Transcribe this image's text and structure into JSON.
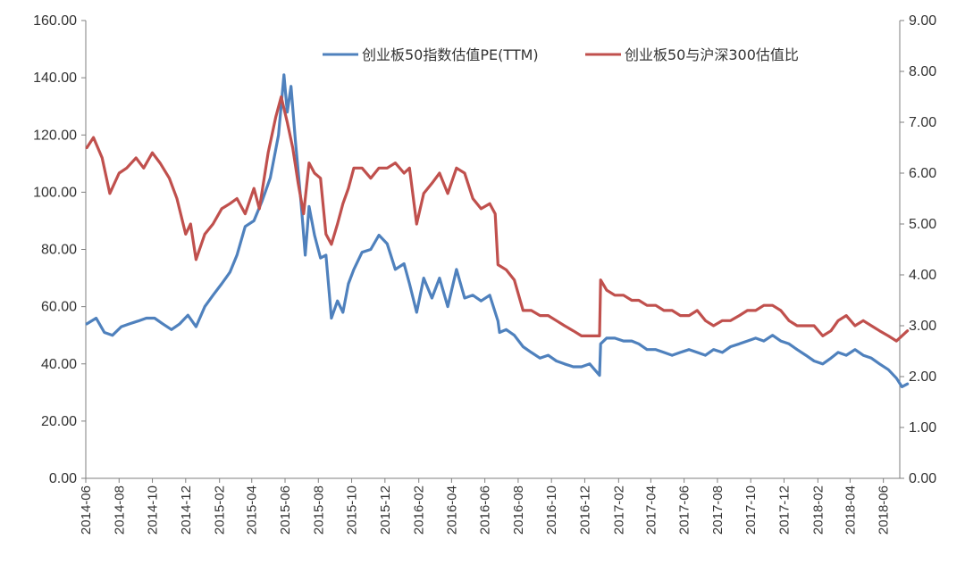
{
  "chart_data": {
    "type": "line",
    "title": "",
    "grid": false,
    "legend_position": "top-right",
    "x_start": "2014-06",
    "x_end": "2018-07",
    "x_tick_labels": [
      "2014-06",
      "2014-08",
      "2014-10",
      "2014-12",
      "2015-02",
      "2015-04",
      "2015-06",
      "2015-08",
      "2015-10",
      "2015-12",
      "2016-02",
      "2016-04",
      "2016-06",
      "2016-08",
      "2016-10",
      "2016-12",
      "2017-02",
      "2017-04",
      "2017-06",
      "2017-08",
      "2017-10",
      "2017-12",
      "2018-02",
      "2018-04",
      "2018-06"
    ],
    "y_left": {
      "min": 0,
      "max": 160,
      "ticks": [
        "0.00",
        "20.00",
        "40.00",
        "60.00",
        "80.00",
        "100.00",
        "120.00",
        "140.00",
        "160.00"
      ]
    },
    "y_right": {
      "min": 0,
      "max": 9,
      "ticks": [
        "0.00",
        "1.00",
        "2.00",
        "3.00",
        "4.00",
        "5.00",
        "6.00",
        "7.00",
        "8.00",
        "9.00"
      ]
    },
    "series": [
      {
        "name": "创业板50指数估值PE(TTM)",
        "axis": "left",
        "color": "#4f81bd",
        "x": [
          "2014-06-03",
          "2014-06-20",
          "2014-07-05",
          "2014-07-20",
          "2014-08-05",
          "2014-08-20",
          "2014-09-05",
          "2014-09-20",
          "2014-10-05",
          "2014-10-20",
          "2014-11-05",
          "2014-11-20",
          "2014-12-05",
          "2014-12-20",
          "2015-01-05",
          "2015-01-20",
          "2015-02-05",
          "2015-02-20",
          "2015-03-05",
          "2015-03-20",
          "2015-04-05",
          "2015-04-20",
          "2015-05-05",
          "2015-05-20",
          "2015-05-30",
          "2015-06-05",
          "2015-06-12",
          "2015-06-20",
          "2015-07-01",
          "2015-07-08",
          "2015-07-15",
          "2015-07-25",
          "2015-08-05",
          "2015-08-15",
          "2015-08-25",
          "2015-09-05",
          "2015-09-15",
          "2015-09-25",
          "2015-10-05",
          "2015-10-20",
          "2015-11-05",
          "2015-11-20",
          "2015-12-05",
          "2015-12-20",
          "2016-01-05",
          "2016-01-15",
          "2016-01-28",
          "2016-02-10",
          "2016-02-25",
          "2016-03-10",
          "2016-03-25",
          "2016-04-10",
          "2016-04-25",
          "2016-05-10",
          "2016-05-25",
          "2016-06-10",
          "2016-06-25",
          "2016-06-28",
          "2016-07-10",
          "2016-07-25",
          "2016-08-10",
          "2016-08-25",
          "2016-09-10",
          "2016-09-25",
          "2016-10-10",
          "2016-10-25",
          "2016-11-10",
          "2016-11-25",
          "2016-12-10",
          "2016-12-28",
          "2016-12-30",
          "2017-01-10",
          "2017-01-25",
          "2017-02-10",
          "2017-02-25",
          "2017-03-10",
          "2017-03-25",
          "2017-04-10",
          "2017-04-25",
          "2017-05-10",
          "2017-05-25",
          "2017-06-10",
          "2017-06-25",
          "2017-07-10",
          "2017-07-25",
          "2017-08-10",
          "2017-08-25",
          "2017-09-10",
          "2017-09-25",
          "2017-10-10",
          "2017-10-25",
          "2017-11-10",
          "2017-11-25",
          "2017-12-10",
          "2017-12-25",
          "2018-01-10",
          "2018-01-25",
          "2018-02-10",
          "2018-02-25",
          "2018-03-10",
          "2018-03-25",
          "2018-04-10",
          "2018-04-25",
          "2018-05-10",
          "2018-05-25",
          "2018-06-10",
          "2018-06-25",
          "2018-07-05",
          "2018-07-15"
        ],
        "values": [
          54,
          56,
          51,
          50,
          53,
          54,
          55,
          56,
          56,
          54,
          52,
          54,
          57,
          53,
          60,
          64,
          68,
          72,
          78,
          88,
          90,
          97,
          105,
          120,
          141,
          128,
          137,
          118,
          95,
          78,
          95,
          85,
          77,
          78,
          56,
          62,
          58,
          68,
          73,
          79,
          80,
          85,
          82,
          73,
          75,
          68,
          58,
          70,
          63,
          70,
          60,
          73,
          63,
          64,
          62,
          64,
          55,
          51,
          52,
          50,
          46,
          44,
          42,
          43,
          41,
          40,
          39,
          39,
          40,
          36,
          47,
          49,
          49,
          48,
          48,
          47,
          45,
          45,
          44,
          43,
          44,
          45,
          44,
          43,
          45,
          44,
          46,
          47,
          48,
          49,
          48,
          50,
          48,
          47,
          45,
          43,
          41,
          40,
          42,
          44,
          43,
          45,
          43,
          42,
          40,
          38,
          35,
          32,
          33
        ]
      },
      {
        "name": "创业板50与沪深300估值比",
        "axis": "right",
        "color": "#c0504d",
        "x": [
          "2014-06-03",
          "2014-06-15",
          "2014-07-01",
          "2014-07-15",
          "2014-08-01",
          "2014-08-15",
          "2014-09-01",
          "2014-09-15",
          "2014-10-01",
          "2014-10-15",
          "2014-11-01",
          "2014-11-15",
          "2014-12-01",
          "2014-12-10",
          "2014-12-20",
          "2015-01-05",
          "2015-01-20",
          "2015-02-05",
          "2015-02-20",
          "2015-03-05",
          "2015-03-20",
          "2015-04-05",
          "2015-04-15",
          "2015-05-01",
          "2015-05-15",
          "2015-05-25",
          "2015-06-05",
          "2015-06-15",
          "2015-06-25",
          "2015-07-05",
          "2015-07-15",
          "2015-07-25",
          "2015-08-05",
          "2015-08-15",
          "2015-08-25",
          "2015-09-05",
          "2015-09-15",
          "2015-09-25",
          "2015-10-05",
          "2015-10-20",
          "2015-11-05",
          "2015-11-20",
          "2015-12-05",
          "2015-12-20",
          "2016-01-05",
          "2016-01-15",
          "2016-01-28",
          "2016-02-10",
          "2016-02-25",
          "2016-03-10",
          "2016-03-25",
          "2016-04-10",
          "2016-04-25",
          "2016-05-10",
          "2016-05-25",
          "2016-06-10",
          "2016-06-20",
          "2016-06-25",
          "2016-07-10",
          "2016-07-25",
          "2016-08-10",
          "2016-08-25",
          "2016-09-10",
          "2016-09-25",
          "2016-10-10",
          "2016-10-25",
          "2016-11-10",
          "2016-11-25",
          "2016-12-10",
          "2016-12-28",
          "2016-12-30",
          "2017-01-10",
          "2017-01-25",
          "2017-02-10",
          "2017-02-25",
          "2017-03-10",
          "2017-03-25",
          "2017-04-10",
          "2017-04-25",
          "2017-05-10",
          "2017-05-25",
          "2017-06-10",
          "2017-06-25",
          "2017-07-10",
          "2017-07-25",
          "2017-08-10",
          "2017-08-25",
          "2017-09-10",
          "2017-09-25",
          "2017-10-10",
          "2017-10-25",
          "2017-11-10",
          "2017-11-25",
          "2017-12-10",
          "2017-12-25",
          "2018-01-10",
          "2018-01-25",
          "2018-02-10",
          "2018-02-25",
          "2018-03-10",
          "2018-03-25",
          "2018-04-10",
          "2018-04-25",
          "2018-05-10",
          "2018-05-25",
          "2018-06-10",
          "2018-06-25",
          "2018-07-05",
          "2018-07-15"
        ],
        "values": [
          6.5,
          6.7,
          6.3,
          5.6,
          6.0,
          6.1,
          6.3,
          6.1,
          6.4,
          6.2,
          5.9,
          5.5,
          4.8,
          5.0,
          4.3,
          4.8,
          5.0,
          5.3,
          5.4,
          5.5,
          5.2,
          5.7,
          5.3,
          6.4,
          7.1,
          7.5,
          7.0,
          6.5,
          5.8,
          5.2,
          6.2,
          6.0,
          5.9,
          4.8,
          4.6,
          5.0,
          5.4,
          5.7,
          6.1,
          6.1,
          5.9,
          6.1,
          6.1,
          6.2,
          6.0,
          6.1,
          5.0,
          5.6,
          5.8,
          6.0,
          5.6,
          6.1,
          6.0,
          5.5,
          5.3,
          5.4,
          5.2,
          4.2,
          4.1,
          3.9,
          3.3,
          3.3,
          3.2,
          3.2,
          3.1,
          3.0,
          2.9,
          2.8,
          2.8,
          2.8,
          3.9,
          3.7,
          3.6,
          3.6,
          3.5,
          3.5,
          3.4,
          3.4,
          3.3,
          3.3,
          3.2,
          3.2,
          3.3,
          3.1,
          3.0,
          3.1,
          3.1,
          3.2,
          3.3,
          3.3,
          3.4,
          3.4,
          3.3,
          3.1,
          3.0,
          3.0,
          3.0,
          2.8,
          2.9,
          3.1,
          3.2,
          3.0,
          3.1,
          3.0,
          2.9,
          2.8,
          2.7,
          2.8,
          2.9
        ]
      }
    ]
  }
}
